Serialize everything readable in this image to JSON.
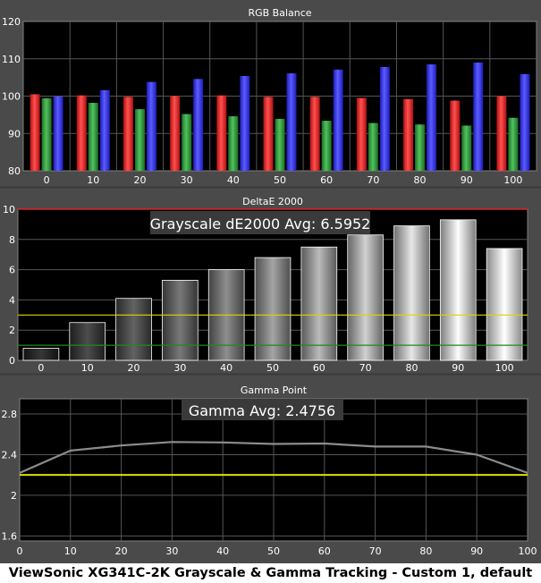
{
  "caption": "ViewSonic XG341C-2K Grayscale & Gamma Tracking - Custom 1, default",
  "colors": {
    "background": "#4a4a4a",
    "plot_background": "#000000",
    "grid": "#555555",
    "red": "#ff3333",
    "green": "#2e9e3a",
    "blue": "#3a3aff",
    "threshold_red": "#ff2020",
    "threshold_yellow": "#d8d800",
    "threshold_green": "#1f8a1f",
    "gamma_line": "#8c8c8c",
    "gamma_target": "#e0e000"
  },
  "chart_data": [
    {
      "type": "bar",
      "title": "RGB Balance",
      "categories": [
        "0",
        "10",
        "20",
        "30",
        "40",
        "50",
        "60",
        "70",
        "80",
        "90",
        "100"
      ],
      "ylim": [
        80,
        120
      ],
      "yticks": [
        80,
        90,
        100,
        110,
        120
      ],
      "grid": true,
      "series": [
        {
          "color": "red",
          "values": [
            100.5,
            100.2,
            99.8,
            100.0,
            100.2,
            99.8,
            99.8,
            99.5,
            99.2,
            98.8,
            100.0
          ]
        },
        {
          "color": "green",
          "values": [
            99.4,
            98.2,
            96.5,
            95.2,
            94.6,
            93.9,
            93.4,
            92.8,
            92.4,
            92.1,
            94.2
          ]
        },
        {
          "color": "blue",
          "values": [
            99.9,
            101.6,
            103.8,
            104.6,
            105.4,
            106.1,
            107.1,
            107.8,
            108.5,
            109.0,
            105.9
          ]
        }
      ]
    },
    {
      "type": "bar",
      "title": "DeltaE 2000",
      "annotation": "Grayscale dE2000 Avg: 6.5952",
      "categories": [
        "0",
        "10",
        "20",
        "30",
        "40",
        "50",
        "60",
        "70",
        "80",
        "90",
        "100"
      ],
      "values": [
        0.8,
        2.5,
        4.1,
        5.3,
        6.0,
        6.8,
        7.5,
        8.3,
        8.9,
        9.3,
        7.4
      ],
      "ylim": [
        0,
        10
      ],
      "yticks": [
        0,
        2,
        4,
        6,
        8,
        10
      ],
      "reference_lines": [
        {
          "value": 10,
          "color": "threshold_red"
        },
        {
          "value": 3,
          "color": "threshold_yellow"
        },
        {
          "value": 1,
          "color": "threshold_green"
        }
      ],
      "grid": true
    },
    {
      "type": "line",
      "title": "Gamma Point",
      "annotation": "Gamma Avg: 2.4756",
      "x": [
        0,
        10,
        20,
        30,
        40,
        50,
        60,
        70,
        80,
        90,
        100
      ],
      "y": [
        2.22,
        2.44,
        2.49,
        2.525,
        2.52,
        2.505,
        2.51,
        2.48,
        2.48,
        2.4,
        2.22
      ],
      "target": 2.2,
      "xlim": [
        0,
        100
      ],
      "ylim": [
        1.55,
        2.95
      ],
      "xticks": [
        0,
        10,
        20,
        30,
        40,
        50,
        60,
        70,
        80,
        90,
        100
      ],
      "yticks": [
        1.6,
        2,
        2.4,
        2.8
      ],
      "grid": true
    }
  ]
}
